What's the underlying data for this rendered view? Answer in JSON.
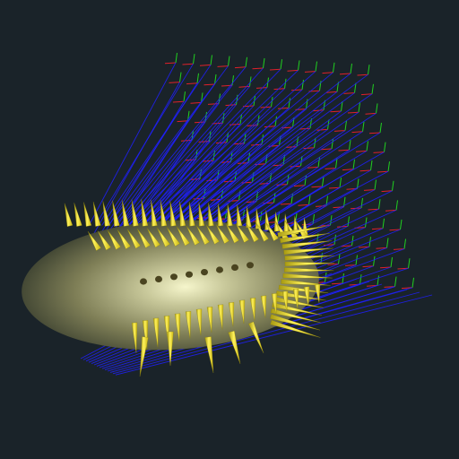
{
  "scene": {
    "background_color": "#1a2329",
    "ellipsoid_color": "#8a8a5a",
    "ellipsoid_highlight": "#f4f4c8",
    "cone_color": "#f2e21e",
    "cone_shadow": "#8a7f0c",
    "axis_x_color": "#e0202a",
    "axis_y_color": "#20d020",
    "axis_z_color": "#2020ff",
    "cone_count_approx": 150,
    "grid_frame_count_approx": 140
  }
}
